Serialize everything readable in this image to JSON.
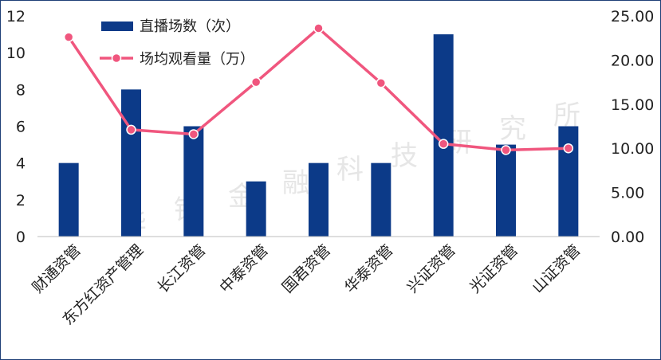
{
  "chart_data": {
    "type": "bar",
    "categories": [
      "财通资管",
      "东方红资产管理",
      "长江资管",
      "中泰资管",
      "国君资管",
      "华泰资管",
      "兴证资管",
      "光证资管",
      "山证资管"
    ],
    "series": [
      {
        "name": "直播场数（次）",
        "type": "bar",
        "axis": "left",
        "values": [
          4,
          8,
          6,
          3,
          4,
          4,
          11,
          5,
          6
        ]
      },
      {
        "name": "场均观看量（万）",
        "type": "line",
        "axis": "right",
        "values": [
          22.6,
          12.1,
          11.6,
          17.5,
          23.6,
          17.4,
          10.5,
          9.8,
          10.0
        ]
      }
    ],
    "y_left": {
      "ticks": [
        "0",
        "2",
        "4",
        "6",
        "8",
        "10",
        "12"
      ],
      "ylim": [
        0,
        12
      ]
    },
    "y_right": {
      "ticks": [
        "0.00",
        "5.00",
        "10.00",
        "15.00",
        "20.00",
        "25.00"
      ],
      "ylim": [
        0,
        25
      ]
    },
    "legend_position": "top-left",
    "grid": false,
    "colors": {
      "bar": "#0c3a88",
      "line": "#f0567e"
    }
  },
  "watermark": "华锐金融科技研究所"
}
